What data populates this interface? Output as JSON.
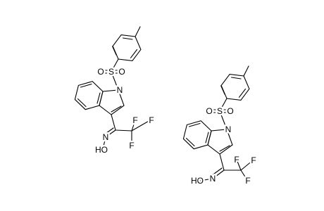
{
  "molecules": [
    {
      "atoms": [
        "N",
        "S",
        "O",
        "O",
        "F",
        "F",
        "F",
        "N",
        "HO"
      ]
    },
    {
      "atoms": [
        "N",
        "S",
        "O",
        "O",
        "F",
        "F",
        "F",
        "N",
        "HO"
      ]
    }
  ]
}
